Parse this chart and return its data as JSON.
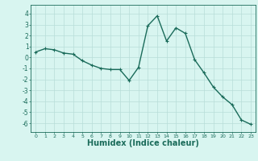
{
  "x": [
    0,
    1,
    2,
    3,
    4,
    5,
    6,
    7,
    8,
    9,
    10,
    11,
    12,
    13,
    14,
    15,
    16,
    17,
    18,
    19,
    20,
    21,
    22,
    23
  ],
  "y": [
    0.5,
    0.8,
    0.7,
    0.4,
    0.3,
    -0.3,
    -0.7,
    -1.0,
    -1.1,
    -1.1,
    -2.1,
    -0.9,
    2.9,
    3.8,
    1.5,
    2.7,
    2.2,
    -0.2,
    -1.4,
    -2.7,
    -3.6,
    -4.3,
    -5.7,
    -6.1
  ],
  "line_color": "#1a6b5a",
  "marker": "+",
  "markersize": 3,
  "linewidth": 1.0,
  "background_color": "#d8f5f0",
  "grid_color": "#b8ddd8",
  "axis_color": "#1a6b5a",
  "tick_color": "#1a6b5a",
  "xlabel": "Humidex (Indice chaleur)",
  "xlabel_fontsize": 7,
  "xlabel_color": "#1a6b5a",
  "yticks": [
    -6,
    -5,
    -4,
    -3,
    -2,
    -1,
    0,
    1,
    2,
    3,
    4
  ],
  "xticks": [
    0,
    1,
    2,
    3,
    4,
    5,
    6,
    7,
    8,
    9,
    10,
    11,
    12,
    13,
    14,
    15,
    16,
    17,
    18,
    19,
    20,
    21,
    22,
    23
  ],
  "xlim": [
    -0.5,
    23.5
  ],
  "ylim": [
    -6.8,
    4.8
  ]
}
